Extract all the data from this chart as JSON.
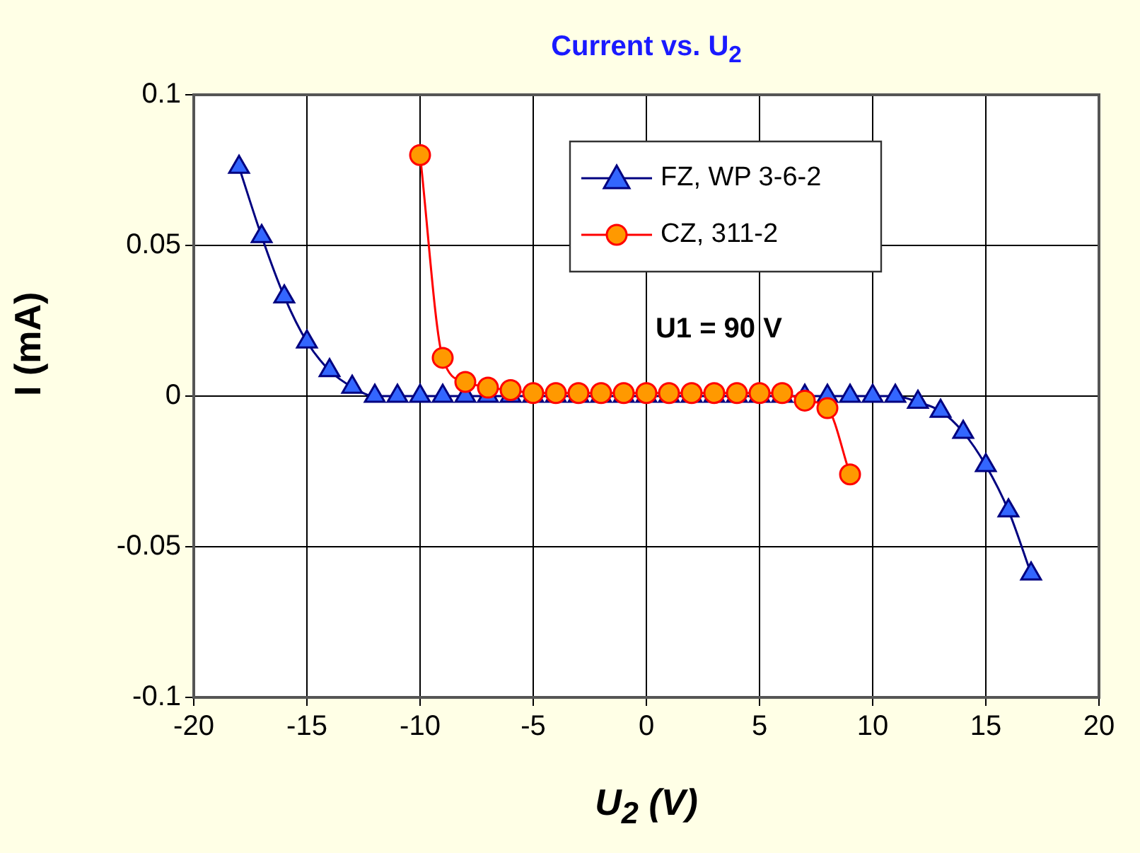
{
  "chart_data": {
    "type": "line",
    "title": "Current vs. U$_{2}$",
    "xlabel": "U$_{2}$ (V)",
    "ylabel": "I (mA)",
    "annotations": [
      "U1 = 90 V"
    ],
    "xlim": [
      -20,
      20
    ],
    "xticks": [
      -20,
      -15,
      -10,
      -5,
      0,
      5,
      10,
      15,
      20
    ],
    "ylim": [
      -0.1,
      0.1
    ],
    "yticks": [
      -0.1,
      -0.05,
      0,
      0.05,
      0.1
    ],
    "grid": true,
    "legend": "top right",
    "line_style": "solid",
    "series": [
      {
        "name": "FZ, WP 3-6-2",
        "color": "#000080",
        "marker": "triangle",
        "x": [
          -18,
          -17,
          -16,
          -15,
          -14,
          -13,
          -12,
          -11,
          -10,
          -9,
          -8,
          -7,
          -6,
          -5,
          -4,
          -3,
          -2,
          -1,
          0,
          1,
          2,
          3,
          4,
          5,
          6,
          7,
          8,
          9,
          10,
          11,
          12,
          13,
          14,
          15,
          16,
          17
        ],
        "values": [
          0.076,
          0.053,
          0.033,
          0.018,
          0.0085,
          0.003,
          0,
          0,
          0,
          0,
          0,
          0,
          0,
          0,
          0,
          0,
          0,
          0,
          0,
          0,
          0,
          0,
          0,
          0,
          0,
          0,
          0,
          0,
          0,
          0,
          -0.002,
          -0.005,
          -0.012,
          -0.023,
          -0.038,
          -0.059
        ]
      },
      {
        "name": "CZ, 311-2",
        "color": "#ff0000",
        "marker": "circle",
        "x": [
          -10,
          -9,
          -8,
          -7,
          -6,
          -5,
          -4,
          -3,
          -2,
          -1,
          0,
          1,
          2,
          3,
          4,
          5,
          6,
          7,
          8,
          9
        ],
        "values": [
          0.08,
          0.0127,
          0.0047,
          0.0028,
          0.002,
          0.001,
          0.001,
          0.001,
          0.001,
          0.001,
          0.001,
          0.001,
          0.001,
          0.001,
          0.001,
          0.001,
          0.001,
          -0.0015,
          -0.004,
          -0.026
        ]
      }
    ]
  }
}
